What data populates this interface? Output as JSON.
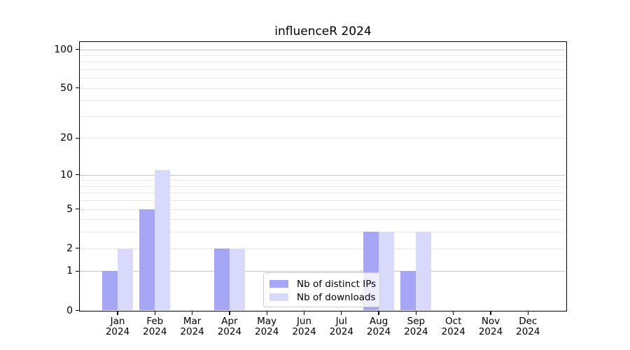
{
  "chart_data": {
    "type": "bar",
    "title": "influenceR 2024",
    "categories": [
      "Jan 2024",
      "Feb 2024",
      "Mar 2024",
      "Apr 2024",
      "May 2024",
      "Jun 2024",
      "Jul 2024",
      "Aug 2024",
      "Sep 2024",
      "Oct 2024",
      "Nov 2024",
      "Dec 2024"
    ],
    "series": [
      {
        "name": "Nb of distinct IPs",
        "color": "#a6a6f7",
        "values": [
          1,
          5,
          0,
          2,
          0,
          0,
          0,
          3,
          1,
          0,
          0,
          0
        ]
      },
      {
        "name": "Nb of downloads",
        "color": "#d9d9fb",
        "values": [
          2,
          11,
          0,
          2,
          0,
          0,
          0,
          3,
          3,
          0,
          0,
          0
        ]
      }
    ],
    "xlabel": "",
    "ylabel": "",
    "y_axis": {
      "scale": "log1p",
      "ticks": [
        0,
        1,
        2,
        5,
        10,
        20,
        50,
        100
      ],
      "minor_gridlines": [
        3,
        4,
        6,
        7,
        8,
        9,
        30,
        40,
        60,
        70,
        80,
        90
      ],
      "decade_gridlines": [
        1,
        10,
        100
      ],
      "ylim_top_value": 114
    },
    "grid": {
      "decade_color": "#c8c8c8",
      "minor_color": "#eaeaea"
    },
    "legend": {
      "position": "inside-bottom-center",
      "border_color": "#cccccc"
    }
  }
}
